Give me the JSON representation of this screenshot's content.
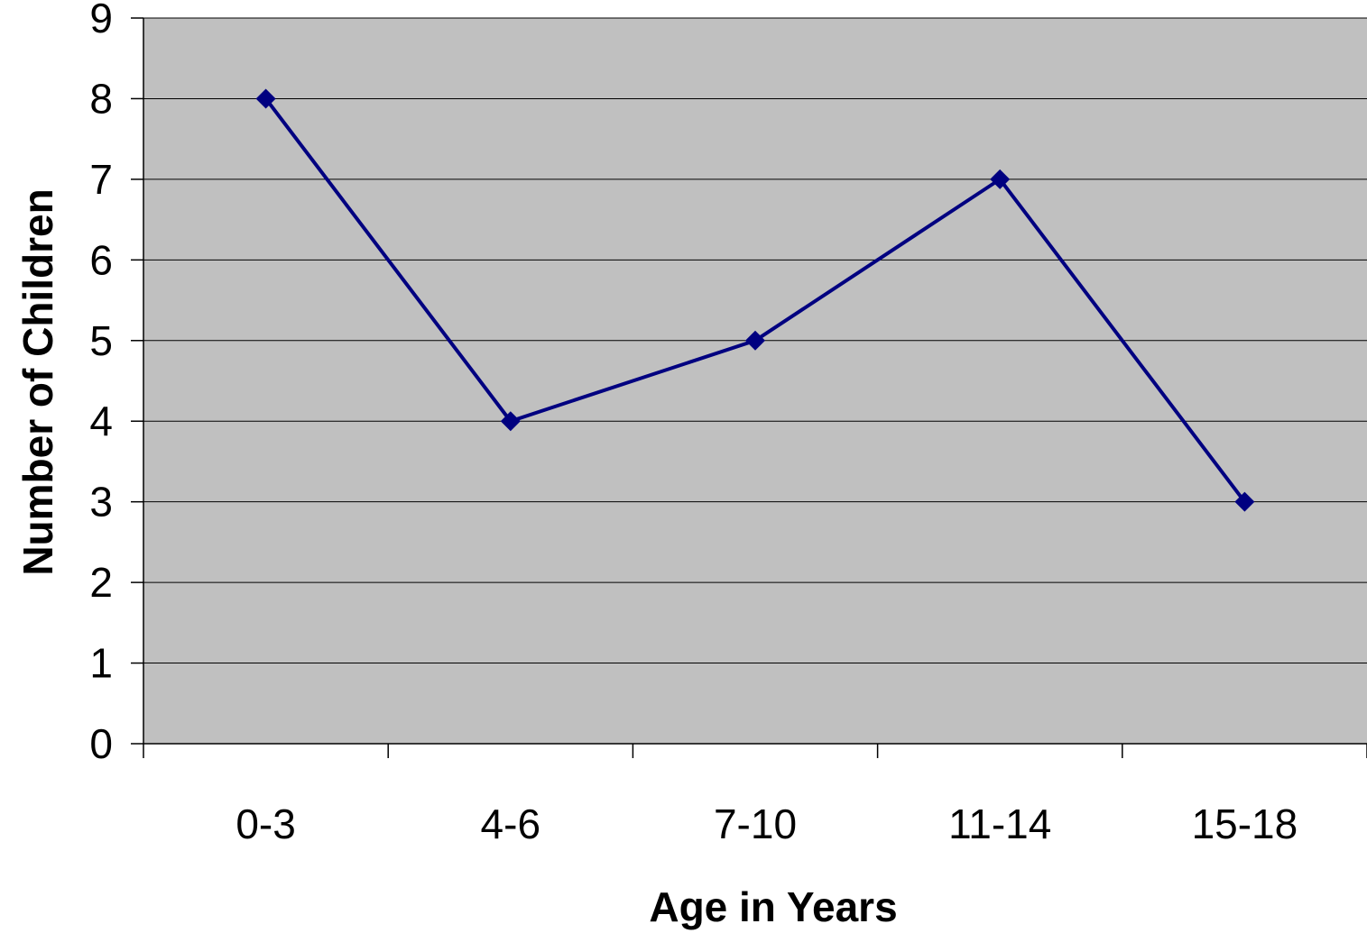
{
  "chart_data": {
    "type": "line",
    "categories": [
      "0-3",
      "4-6",
      "7-10",
      "11-14",
      "15-18"
    ],
    "series": [
      {
        "values": [
          8,
          4,
          5,
          7,
          3
        ]
      }
    ],
    "xlabel": "Age in Years",
    "ylabel": "Number of Children",
    "ylim": [
      0,
      9
    ],
    "yticks": [
      0,
      1,
      2,
      3,
      4,
      5,
      6,
      7,
      8,
      9
    ],
    "grid": true,
    "colors": {
      "plot_background": "#c0c0c0",
      "line": "#000080",
      "gridline": "#000000"
    }
  }
}
